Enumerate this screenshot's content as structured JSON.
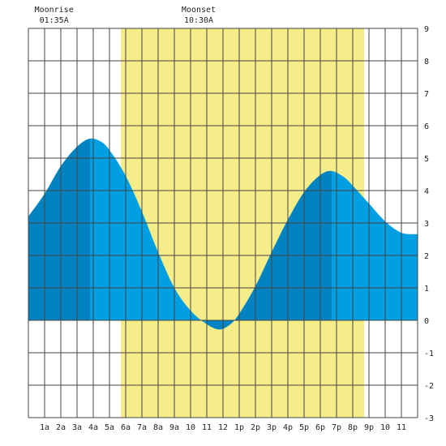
{
  "chart_data": {
    "type": "area",
    "xlabel": "",
    "ylabel": "",
    "xlim": [
      0,
      24
    ],
    "ylim": [
      -3,
      9
    ],
    "grid": true,
    "x_tick_labels": [
      "1a",
      "2a",
      "3a",
      "4a",
      "5a",
      "6a",
      "7a",
      "8a",
      "9a",
      "10",
      "11",
      "12",
      "1p",
      "2p",
      "3p",
      "4p",
      "5p",
      "6p",
      "7p",
      "8p",
      "9p",
      "10",
      "11"
    ],
    "y_tick_labels": [
      "-3",
      "-2",
      "-1",
      "0",
      "1",
      "2",
      "3",
      "4",
      "5",
      "6",
      "7",
      "8",
      "9"
    ],
    "daylight": {
      "start": 5.7,
      "end": 20.7,
      "color": "#f5ec8a"
    },
    "moon_events": [
      {
        "label": "Moonrise",
        "time": "01:35A",
        "x": 1.583
      },
      {
        "label": "Moonset",
        "time": "10:30A",
        "x": 10.5
      }
    ],
    "tide_extremes": [
      {
        "type": "high",
        "x": 3.8,
        "y": 5.6
      },
      {
        "type": "low",
        "x": 11.8,
        "y": -0.28
      },
      {
        "type": "high",
        "x": 18.7,
        "y": 4.6
      }
    ],
    "series": [
      {
        "x": [
          0,
          1,
          2,
          3,
          3.8,
          4.5,
          5,
          6,
          7,
          8,
          9,
          10,
          11,
          11.8,
          12.5,
          13,
          14,
          15,
          16,
          17,
          18,
          18.7,
          19.5,
          20,
          21,
          22,
          23,
          24
        ],
        "values": [
          3.2,
          3.9,
          4.75,
          5.35,
          5.6,
          5.5,
          5.25,
          4.45,
          3.35,
          2.1,
          1.0,
          0.3,
          -0.12,
          -0.28,
          -0.1,
          0.2,
          1.05,
          2.1,
          3.1,
          3.95,
          4.48,
          4.6,
          4.4,
          4.15,
          3.6,
          3.05,
          2.7,
          2.65
        ]
      }
    ],
    "colors": {
      "tide_light": "#009fe3",
      "tide_dark": "#0083c0",
      "grid": "#444444"
    }
  }
}
